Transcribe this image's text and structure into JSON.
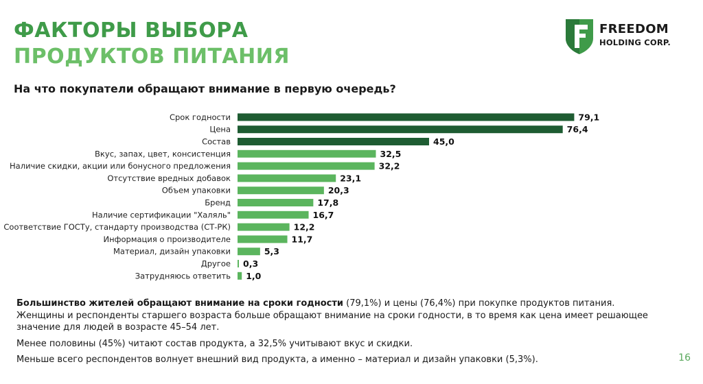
{
  "title": {
    "line1": "ФАКТОРЫ ВЫБОРА",
    "line2": "ПРОДУКТОВ ПИТАНИЯ"
  },
  "logo": {
    "name": "FREEDOM",
    "sub": "HOLDING CORP.",
    "icon": "freedom-f-shield-icon"
  },
  "question": "На что покупатели обращают внимание в первую очередь?",
  "colors": {
    "title_dark": "#3f9b49",
    "title_light": "#6cbf68",
    "bar_dark": "#1e5c32",
    "bar_light": "#5bb55e",
    "page_number": "#59a85c"
  },
  "chart_data": {
    "type": "bar",
    "orientation": "horizontal",
    "categories": [
      "Срок годности",
      "Цена",
      "Состав",
      "Вкус, запах, цвет, консистенция",
      "Наличие скидки, акции или бонусного предложения",
      "Отсутствие вредных добавок",
      "Объем упаковки",
      "Бренд",
      "Наличие сертификации \"Халяль\"",
      "Соответствие ГОСТу, стандарту производства (СТ-РК)",
      "Информация о производителе",
      "Материал, дизайн упаковки",
      "Другое",
      "Затрудняюсь ответить"
    ],
    "values": [
      79.1,
      76.4,
      45.0,
      32.5,
      32.2,
      23.1,
      20.3,
      17.8,
      16.7,
      12.2,
      11.7,
      5.3,
      0.3,
      1.0
    ],
    "value_labels": [
      "79,1",
      "76,4",
      "45,0",
      "32,5",
      "32,2",
      "23,1",
      "20,3",
      "17,8",
      "16,7",
      "12,2",
      "11,7",
      "5,3",
      "0,3",
      "1,0"
    ],
    "highlight_top": 3,
    "xlim": [
      0,
      100
    ],
    "grid": false,
    "legend": "none"
  },
  "notes": {
    "p1_bold": "Большинство жителей обращают внимание на сроки годности",
    "p1_rest": " (79,1%) и цены (76,4%) при покупке продуктов питания. Женщины и респонденты старшего возраста больше обращают внимание на сроки годности, в то время как цена имеет решающее значение для людей в возрасте 45–54 лет.",
    "p2": "Менее половины (45%) читают состав продукта, а 32,5% учитывают вкус и скидки.",
    "p3": "Меньше всего респондентов волнует внешний вид продукта, а именно – материал и дизайн упаковки (5,3%)."
  },
  "page_number": "16"
}
